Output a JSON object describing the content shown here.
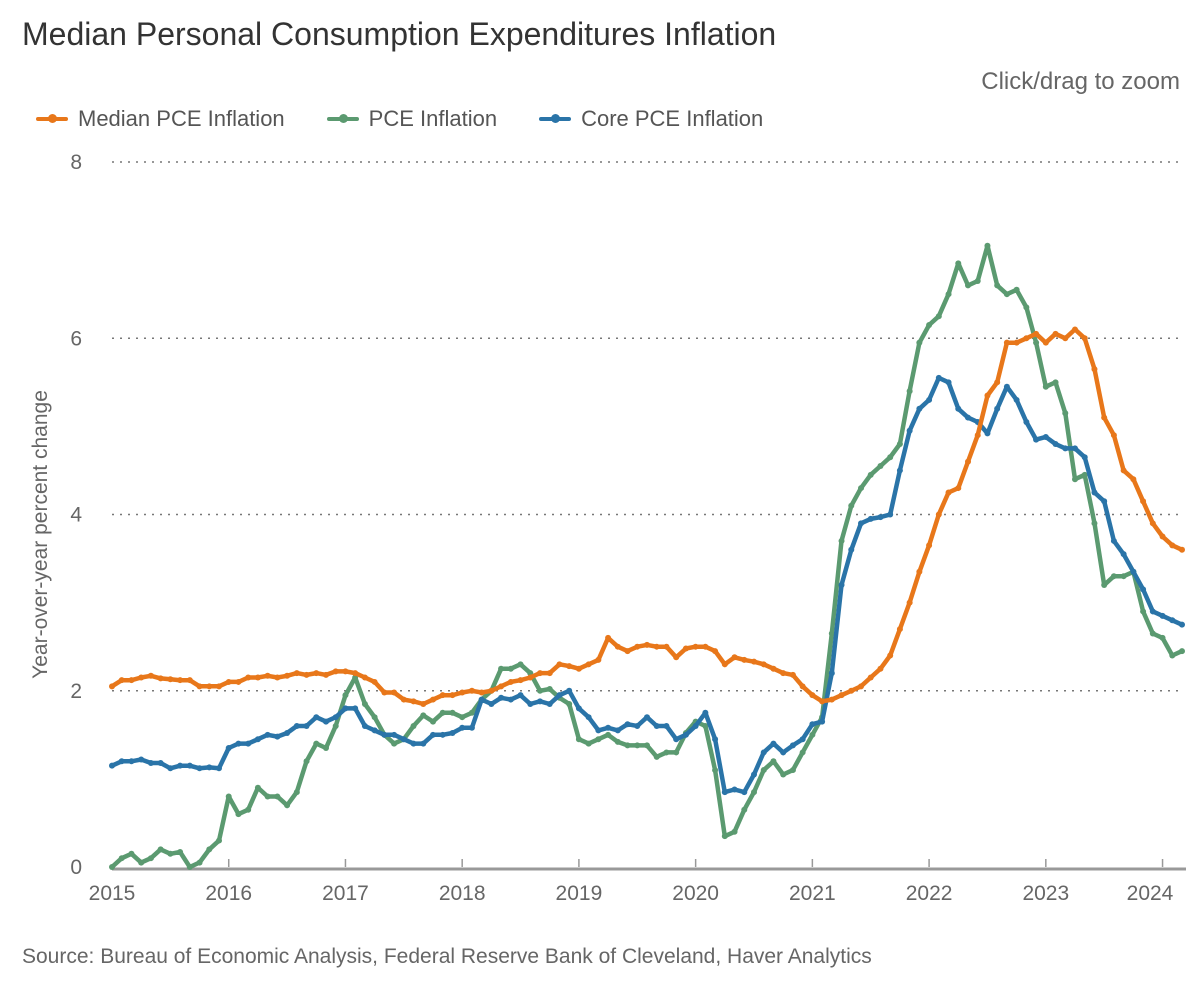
{
  "title": "Median Personal Consumption Expenditures Inflation",
  "zoom_hint": "Click/drag to zoom",
  "source": "Source: Bureau of Economic Analysis, Federal Reserve Bank of Cleveland, Haver Analytics",
  "chart_data": {
    "type": "line",
    "title": "Median Personal Consumption Expenditures Inflation",
    "ylabel": "Year-over-year percent change",
    "xlabel": "",
    "x_start": "2015-01",
    "x_end": "2024-03",
    "frequency": "monthly",
    "ylim": [
      0,
      8
    ],
    "yticks": [
      "0",
      "2",
      "4",
      "6",
      "8"
    ],
    "xticks": [
      "2015",
      "2016",
      "2017",
      "2018",
      "2019",
      "2020",
      "2021",
      "2022",
      "2023",
      "2024"
    ],
    "grid": "horizontal dotted",
    "legend_position": "top-left",
    "series": [
      {
        "name": "Median PCE Inflation",
        "color": "#e8771a",
        "values": [
          2.05,
          2.12,
          2.12,
          2.15,
          2.17,
          2.14,
          2.13,
          2.12,
          2.12,
          2.05,
          2.05,
          2.05,
          2.1,
          2.1,
          2.15,
          2.15,
          2.17,
          2.15,
          2.17,
          2.2,
          2.18,
          2.2,
          2.18,
          2.22,
          2.22,
          2.2,
          2.15,
          2.1,
          1.98,
          1.98,
          1.9,
          1.88,
          1.85,
          1.9,
          1.95,
          1.95,
          1.98,
          2.0,
          1.98,
          2.0,
          2.05,
          2.1,
          2.12,
          2.15,
          2.2,
          2.2,
          2.3,
          2.28,
          2.25,
          2.3,
          2.35,
          2.6,
          2.5,
          2.45,
          2.5,
          2.52,
          2.5,
          2.5,
          2.38,
          2.48,
          2.5,
          2.5,
          2.45,
          2.3,
          2.38,
          2.35,
          2.33,
          2.3,
          2.25,
          2.2,
          2.18,
          2.05,
          1.95,
          1.88,
          1.9,
          1.95,
          2.0,
          2.05,
          2.15,
          2.25,
          2.4,
          2.7,
          3.0,
          3.35,
          3.65,
          4.0,
          4.25,
          4.3,
          4.6,
          4.9,
          5.35,
          5.5,
          5.95,
          5.95,
          6.0,
          6.05,
          5.95,
          6.05,
          6.0,
          6.1,
          6.0,
          5.65,
          5.1,
          4.9,
          4.5,
          4.4,
          4.15,
          3.9,
          3.75,
          3.65,
          3.6
        ]
      },
      {
        "name": "PCE Inflation",
        "color": "#5b9a70",
        "values": [
          0.0,
          0.1,
          0.15,
          0.05,
          0.1,
          0.2,
          0.15,
          0.17,
          0.0,
          0.05,
          0.2,
          0.3,
          0.8,
          0.6,
          0.65,
          0.9,
          0.8,
          0.8,
          0.7,
          0.85,
          1.2,
          1.4,
          1.35,
          1.6,
          1.95,
          2.15,
          1.85,
          1.7,
          1.5,
          1.4,
          1.45,
          1.6,
          1.72,
          1.65,
          1.75,
          1.75,
          1.7,
          1.75,
          1.9,
          2.0,
          2.25,
          2.25,
          2.3,
          2.2,
          2.0,
          2.02,
          1.92,
          1.85,
          1.45,
          1.4,
          1.45,
          1.5,
          1.42,
          1.38,
          1.38,
          1.38,
          1.25,
          1.3,
          1.3,
          1.52,
          1.65,
          1.6,
          1.1,
          0.35,
          0.4,
          0.65,
          0.85,
          1.1,
          1.2,
          1.05,
          1.1,
          1.3,
          1.5,
          1.7,
          2.65,
          3.7,
          4.1,
          4.3,
          4.45,
          4.55,
          4.65,
          4.8,
          5.4,
          5.95,
          6.15,
          6.25,
          6.5,
          6.85,
          6.6,
          6.65,
          7.05,
          6.6,
          6.5,
          6.55,
          6.35,
          5.95,
          5.45,
          5.5,
          5.15,
          4.4,
          4.45,
          3.9,
          3.2,
          3.3,
          3.3,
          3.35,
          2.9,
          2.65,
          2.6,
          2.4,
          2.45
        ]
      },
      {
        "name": "Core PCE Inflation",
        "color": "#2a74a8",
        "values": [
          1.15,
          1.2,
          1.2,
          1.22,
          1.18,
          1.18,
          1.12,
          1.15,
          1.15,
          1.12,
          1.13,
          1.12,
          1.35,
          1.4,
          1.4,
          1.45,
          1.5,
          1.48,
          1.52,
          1.6,
          1.6,
          1.7,
          1.65,
          1.7,
          1.8,
          1.8,
          1.6,
          1.55,
          1.5,
          1.5,
          1.45,
          1.4,
          1.4,
          1.5,
          1.5,
          1.52,
          1.58,
          1.58,
          1.9,
          1.85,
          1.92,
          1.9,
          1.95,
          1.85,
          1.88,
          1.85,
          1.95,
          2.0,
          1.8,
          1.7,
          1.55,
          1.58,
          1.55,
          1.62,
          1.6,
          1.7,
          1.6,
          1.6,
          1.45,
          1.5,
          1.6,
          1.75,
          1.45,
          0.85,
          0.88,
          0.85,
          1.05,
          1.3,
          1.4,
          1.3,
          1.38,
          1.45,
          1.62,
          1.65,
          2.2,
          3.2,
          3.6,
          3.9,
          3.95,
          3.97,
          4.0,
          4.5,
          4.95,
          5.2,
          5.3,
          5.55,
          5.5,
          5.2,
          5.1,
          5.05,
          4.92,
          5.2,
          5.45,
          5.3,
          5.05,
          4.85,
          4.88,
          4.8,
          4.75,
          4.75,
          4.65,
          4.25,
          4.15,
          3.7,
          3.55,
          3.35,
          3.15,
          2.9,
          2.85,
          2.8,
          2.75
        ]
      }
    ]
  }
}
